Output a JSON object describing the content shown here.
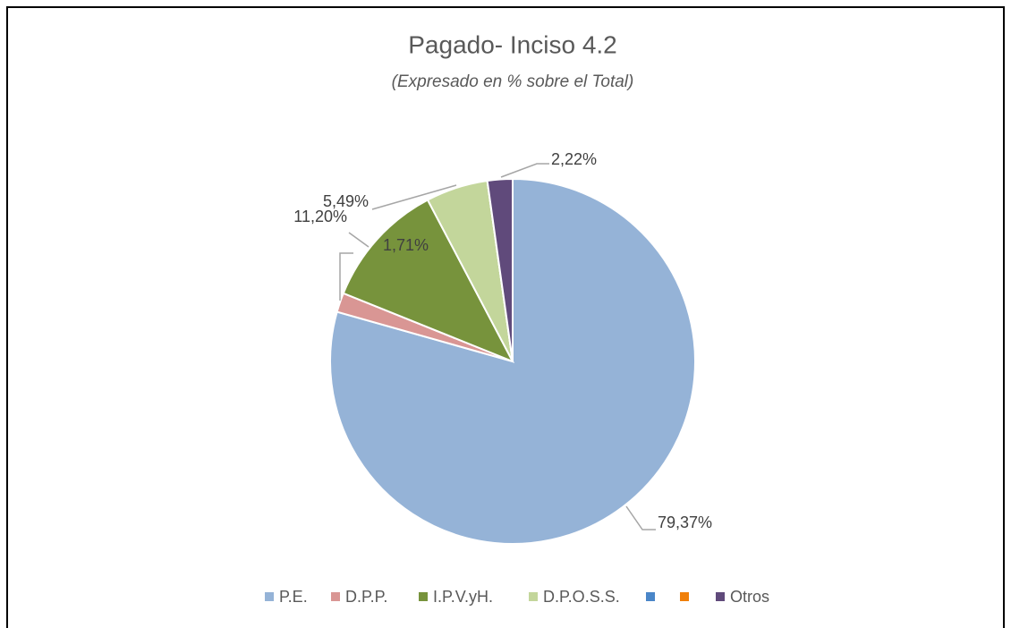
{
  "chart_data": {
    "type": "pie",
    "title": "Pagado- Inciso 4.2",
    "subtitle": "(Expresado en % sobre el Total)",
    "categories": [
      "P.E.",
      "D.P.P.",
      "I.P.V.yH.",
      "D.P.O.S.S.",
      null,
      null,
      "Otros"
    ],
    "values": [
      79.37,
      1.71,
      11.2,
      5.49,
      0,
      0,
      2.22
    ],
    "value_labels": [
      "79,37%",
      "1,71%",
      "11,20%",
      "5,49%",
      null,
      null,
      "2,22%"
    ],
    "colors": [
      "#95b3d7",
      "#d99694",
      "#77933c",
      "#c3d69b",
      "#4a86c8",
      "#f07f09",
      "#604a7b"
    ],
    "legend": "bottom"
  }
}
